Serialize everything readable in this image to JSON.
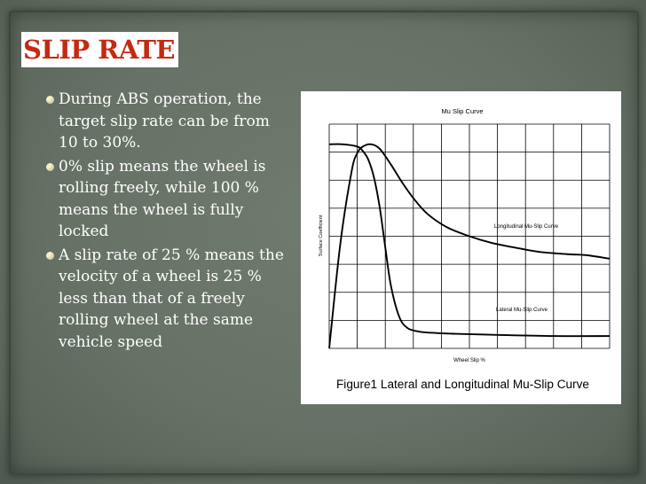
{
  "slide": {
    "title": "SLIP RATE",
    "bullets": [
      "During ABS operation, the target slip rate can be from 10 to 30%.",
      "0% slip means the wheel is rolling freely, while 100 % means the wheel is fully locked",
      "A slip rate of 25 % means the velocity of a wheel is 25 % less than that of a freely rolling wheel at the same vehicle speed"
    ]
  },
  "colors": {
    "title": "#c42a12",
    "title_background": "#ffffff",
    "bullet_text": "#ffffff",
    "bullet_mark": "#f7f2c8",
    "slide_background": "#667266",
    "curve": "#000000"
  },
  "chart_data": {
    "type": "line",
    "title": "Mu Slip Curve",
    "xlabel": "Wheel Slip %",
    "ylabel": "Surface Coefficient",
    "caption": "Figure1 Lateral and Longitudinal Mu-Slip Curve",
    "xlim": [
      0,
      100
    ],
    "ylim": [
      0,
      1
    ],
    "grid": true,
    "grid_columns": 10,
    "grid_rows": 8,
    "series": [
      {
        "name": "Longitudinal Mu-Slip Curve",
        "x": [
          0,
          4,
          8,
          10,
          12,
          15,
          18,
          22,
          26,
          30,
          35,
          42,
          50,
          58,
          66,
          75,
          85,
          92,
          100
        ],
        "y": [
          0.0,
          0.47,
          0.79,
          0.87,
          0.9,
          0.91,
          0.89,
          0.82,
          0.74,
          0.67,
          0.6,
          0.54,
          0.5,
          0.47,
          0.45,
          0.43,
          0.42,
          0.415,
          0.4
        ]
      },
      {
        "name": "Lateral Mu-Slip Curve",
        "x": [
          0,
          5,
          10,
          12,
          14,
          16,
          18,
          20,
          22,
          25,
          28,
          32,
          36,
          45,
          60,
          80,
          100
        ],
        "y": [
          0.91,
          0.91,
          0.9,
          0.88,
          0.84,
          0.76,
          0.63,
          0.45,
          0.28,
          0.14,
          0.09,
          0.075,
          0.07,
          0.065,
          0.06,
          0.055,
          0.055
        ]
      }
    ]
  }
}
